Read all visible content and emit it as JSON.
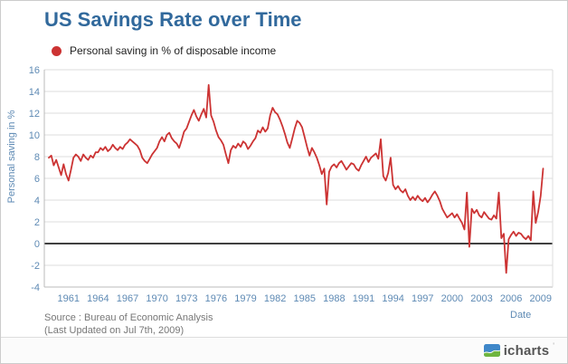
{
  "header": {
    "title": "US Savings Rate over Time"
  },
  "legend": {
    "label": "Personal saving in % of disposable income",
    "marker_color": "#CC3333"
  },
  "source": {
    "line1": "Source : Bureau of Economic Analysis",
    "line2": "(Last Updated on Jul 7th, 2009)"
  },
  "footer": {
    "brand": "icharts",
    "brand_mark": "'"
  },
  "colors": {
    "title_text": "#31699C",
    "axis_text": "#5E8AB4",
    "grid": "#DDDDDD",
    "axis_line": "#BBBBBB",
    "zero_line": "#000000",
    "series_line": "#CC3333",
    "source_text": "#777777",
    "logo_blue": "#3F87C9",
    "logo_green": "#6FB53F"
  },
  "chart_data": {
    "type": "line",
    "title": "US Savings Rate over Time",
    "xlabel": "Date",
    "ylabel": "Personal saving in %",
    "ylim": [
      -4,
      16
    ],
    "y_ticks": [
      16,
      14,
      12,
      10,
      8,
      6,
      4,
      2,
      0,
      -2,
      -4
    ],
    "x_ticks": [
      1961,
      1964,
      1967,
      1970,
      1973,
      1976,
      1979,
      1982,
      1985,
      1988,
      1991,
      1994,
      1997,
      2000,
      2003,
      2006,
      2009
    ],
    "grid": true,
    "zero_line": true,
    "legend_position": "top-left",
    "series": [
      {
        "name": "Personal saving in % of disposable income",
        "color": "#CC3333",
        "frequency": "quarterly",
        "x_start": 1959.0,
        "x_step": 0.25,
        "values": [
          7.9,
          8.1,
          7.2,
          7.7,
          7.0,
          6.3,
          7.3,
          6.4,
          5.8,
          6.8,
          7.9,
          8.2,
          8.0,
          7.6,
          8.2,
          7.9,
          7.7,
          8.1,
          7.9,
          8.4,
          8.4,
          8.8,
          8.6,
          8.9,
          8.5,
          8.7,
          9.1,
          8.8,
          8.6,
          8.9,
          8.7,
          9.1,
          9.3,
          9.6,
          9.4,
          9.2,
          9.0,
          8.6,
          7.9,
          7.6,
          7.4,
          7.8,
          8.2,
          8.5,
          8.8,
          9.4,
          9.8,
          9.4,
          10.0,
          10.2,
          9.7,
          9.4,
          9.2,
          8.8,
          9.5,
          10.3,
          10.6,
          11.2,
          11.8,
          12.3,
          11.7,
          11.3,
          11.9,
          12.4,
          11.6,
          14.6,
          11.8,
          11.2,
          10.4,
          9.8,
          9.5,
          9.1,
          8.2,
          7.4,
          8.6,
          9.0,
          8.8,
          9.2,
          8.9,
          9.4,
          9.2,
          8.7,
          9.0,
          9.4,
          9.7,
          10.4,
          10.2,
          10.7,
          10.3,
          10.6,
          11.8,
          12.5,
          12.1,
          11.9,
          11.4,
          10.8,
          10.1,
          9.3,
          8.8,
          9.7,
          10.6,
          11.3,
          11.1,
          10.7,
          9.8,
          8.9,
          8.1,
          8.8,
          8.4,
          7.9,
          7.2,
          6.4,
          6.9,
          3.6,
          6.6,
          7.1,
          7.3,
          7.0,
          7.4,
          7.6,
          7.2,
          6.8,
          7.1,
          7.4,
          7.3,
          6.9,
          6.7,
          7.2,
          7.6,
          8.0,
          7.5,
          7.9,
          8.1,
          8.3,
          7.8,
          9.6,
          6.2,
          5.8,
          6.5,
          7.9,
          5.4,
          5.0,
          5.3,
          4.9,
          4.7,
          5.0,
          4.4,
          4.0,
          4.3,
          4.0,
          4.4,
          4.1,
          3.9,
          4.2,
          3.8,
          4.1,
          4.5,
          4.8,
          4.4,
          3.9,
          3.2,
          2.8,
          2.4,
          2.6,
          2.8,
          2.4,
          2.7,
          2.3,
          1.9,
          1.3,
          4.7,
          -0.3,
          3.2,
          2.8,
          3.1,
          2.6,
          2.4,
          2.9,
          2.6,
          2.3,
          2.2,
          2.6,
          2.3,
          4.7,
          0.5,
          0.9,
          -2.7,
          0.4,
          0.8,
          1.1,
          0.7,
          1.0,
          0.9,
          0.6,
          0.4,
          0.7,
          0.3,
          4.8,
          1.9,
          2.9,
          4.4,
          6.9
        ]
      }
    ]
  }
}
